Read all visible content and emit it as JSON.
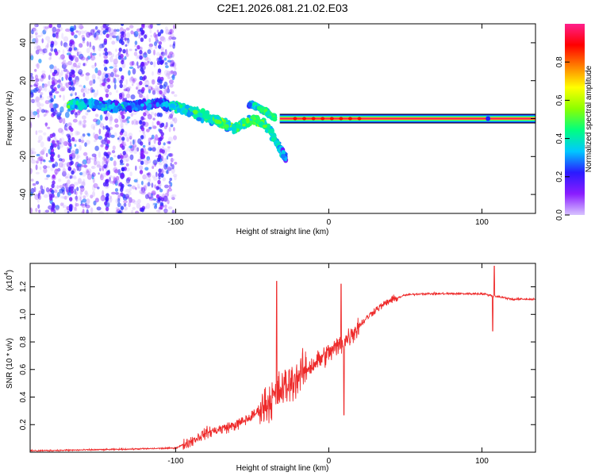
{
  "title": "C2E1.2026.081.21.02.E03",
  "chart_data": [
    {
      "type": "heatmap",
      "panel": "spectrogram",
      "xlabel": "Height of straight line (km)",
      "ylabel": "Frequency (Hz)",
      "xlim": [
        -195,
        135
      ],
      "ylim": [
        -50,
        50
      ],
      "xticks": [
        -100,
        0,
        100
      ],
      "xtick_labels": [
        "-100",
        "0",
        "100"
      ],
      "yticks": [
        -40,
        -20,
        0,
        20,
        40
      ],
      "ytick_labels": [
        "-40",
        "-20",
        "0",
        "20",
        "40"
      ],
      "colorbar": {
        "label": "Normalized spectral amplitude",
        "range": [
          0,
          1
        ],
        "ticks": [
          0.0,
          0.2,
          0.4,
          0.6,
          0.8
        ],
        "tick_labels": [
          "0.0",
          "0.2",
          "0.4",
          "0.6",
          "0.8"
        ],
        "colormap": [
          "#d8c4ff",
          "#8a1cff",
          "#2a1aff",
          "#00c8ff",
          "#00ff80",
          "#8cff00",
          "#ffff00",
          "#ff8000",
          "#ff0000",
          "#ff1f8c"
        ]
      },
      "features": {
        "scatter_region_x": [
          -195,
          -100
        ],
        "doppler_track": [
          {
            "x": -170,
            "f": 7,
            "a": 0.45
          },
          {
            "x": -155,
            "f": 8,
            "a": 0.35
          },
          {
            "x": -140,
            "f": 6,
            "a": 0.35
          },
          {
            "x": -125,
            "f": 7,
            "a": 0.3
          },
          {
            "x": -110,
            "f": 8,
            "a": 0.3
          },
          {
            "x": -100,
            "f": 6,
            "a": 0.4
          },
          {
            "x": -90,
            "f": 4,
            "a": 0.45
          },
          {
            "x": -80,
            "f": 1,
            "a": 0.45
          },
          {
            "x": -70,
            "f": -2,
            "a": 0.5
          },
          {
            "x": -62,
            "f": -5,
            "a": 0.45
          },
          {
            "x": -55,
            "f": -3,
            "a": 0.5
          },
          {
            "x": -48,
            "f": 0,
            "a": 0.55
          },
          {
            "x": -42,
            "f": -3,
            "a": 0.5
          },
          {
            "x": -37,
            "f": -8,
            "a": 0.45
          },
          {
            "x": -33,
            "f": -14,
            "a": 0.4
          },
          {
            "x": -28,
            "f": -21,
            "a": 0.3
          }
        ],
        "upper_arc": [
          {
            "x": -52,
            "f": 8,
            "a": 0.35
          },
          {
            "x": -46,
            "f": 6,
            "a": 0.4
          },
          {
            "x": -40,
            "f": 3,
            "a": 0.45
          },
          {
            "x": -35,
            "f": 0,
            "a": 0.5
          }
        ],
        "carrier": {
          "x_start": -32,
          "x_end": 135,
          "f": 0,
          "a": 0.95
        }
      }
    },
    {
      "type": "line",
      "panel": "snr",
      "xlabel": "Height of straight line (km)",
      "ylabel": "SNR (10 * v/v)",
      "scale_note": "(x10",
      "scale_exp": "4",
      "scale_close": ")",
      "color": "#ee2a2a",
      "xlim": [
        -195,
        135
      ],
      "ylim": [
        0,
        1.37
      ],
      "xticks": [
        -100,
        0,
        100
      ],
      "xtick_labels": [
        "-100",
        "0",
        "100"
      ],
      "yticks": [
        0.2,
        0.4,
        0.6,
        0.8,
        1.0,
        1.2
      ],
      "ytick_labels": [
        "0.2",
        "0.4",
        "0.6",
        "0.8",
        "1.0",
        "1.2"
      ],
      "series_envelope": [
        {
          "x": -195,
          "y": 0.01
        },
        {
          "x": -140,
          "y": 0.02
        },
        {
          "x": -100,
          "y": 0.03
        },
        {
          "x": -90,
          "y": 0.08
        },
        {
          "x": -80,
          "y": 0.14
        },
        {
          "x": -70,
          "y": 0.17
        },
        {
          "x": -60,
          "y": 0.2
        },
        {
          "x": -50,
          "y": 0.26
        },
        {
          "x": -40,
          "y": 0.36
        },
        {
          "x": -30,
          "y": 0.46
        },
        {
          "x": -20,
          "y": 0.55
        },
        {
          "x": -10,
          "y": 0.64
        },
        {
          "x": 0,
          "y": 0.72
        },
        {
          "x": 10,
          "y": 0.8
        },
        {
          "x": 20,
          "y": 0.92
        },
        {
          "x": 30,
          "y": 1.03
        },
        {
          "x": 40,
          "y": 1.1
        },
        {
          "x": 50,
          "y": 1.14
        },
        {
          "x": 60,
          "y": 1.15
        },
        {
          "x": 80,
          "y": 1.15
        },
        {
          "x": 100,
          "y": 1.15
        },
        {
          "x": 110,
          "y": 1.13
        },
        {
          "x": 120,
          "y": 1.11
        },
        {
          "x": 135,
          "y": 1.11
        }
      ],
      "notable_spikes": [
        {
          "x": -34,
          "y": 1.24
        },
        {
          "x": 8,
          "y": 1.22
        },
        {
          "x": 10,
          "y": 0.27
        },
        {
          "x": 108,
          "y": 1.35
        },
        {
          "x": 107,
          "y": 0.88
        }
      ]
    }
  ]
}
